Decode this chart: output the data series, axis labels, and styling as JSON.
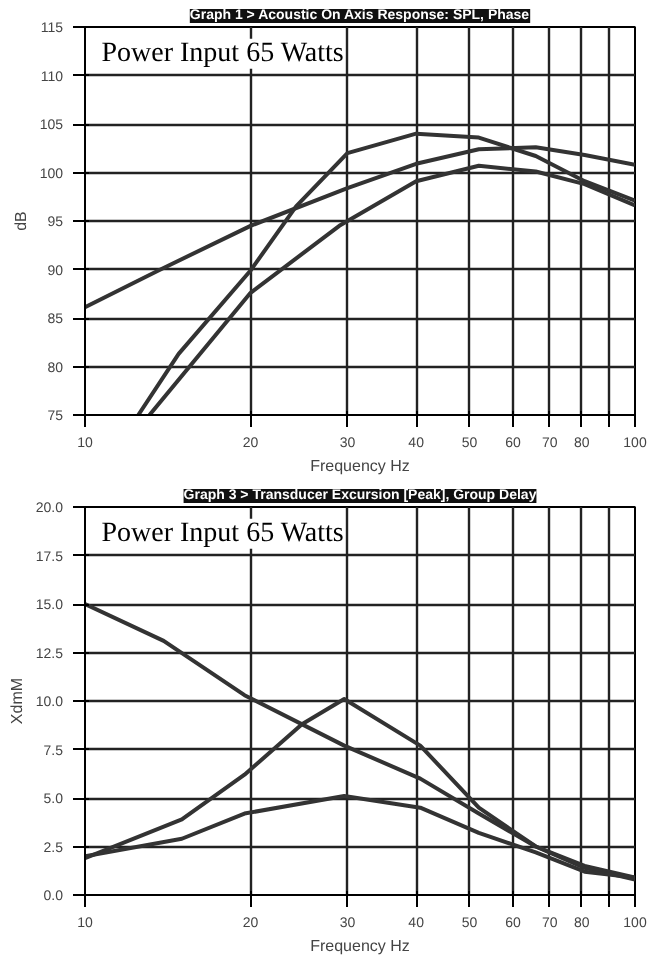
{
  "chart_data": [
    {
      "type": "line",
      "title": "Graph 1 > Acoustic On Axis Response: SPL, Phase",
      "ylabel": "dB",
      "xlabel": "Frequency Hz",
      "annotations": [
        "Power Input 65 Watts"
      ],
      "log": "x",
      "grid": true,
      "line_style": "solid",
      "marker": "none",
      "xlim": [
        10,
        100
      ],
      "xticks": [
        10,
        20,
        30,
        40,
        50,
        60,
        70,
        80,
        {
          "value": 90,
          "label": null
        },
        100
      ],
      "ylim": [
        75,
        115
      ],
      "yticks": [
        75,
        80,
        85,
        90,
        95,
        100,
        105,
        110,
        115
      ],
      "series": [
        {
          "color": "#333333",
          "x": [
            10,
            13.6,
            20,
            30,
            40,
            52,
            66,
            81,
            100
          ],
          "values": [
            86.1,
            89.9,
            94.5,
            98.4,
            100.9,
            102.4,
            102.6,
            101.8,
            100.8
          ]
        },
        {
          "color": "#333333",
          "x": [
            12.5,
            14.8,
            20,
            24.2,
            30,
            40,
            52,
            66,
            81,
            100
          ],
          "values": [
            75,
            81.3,
            89.9,
            96.5,
            102,
            104,
            103.6,
            101.7,
            99.1,
            97.1
          ]
        },
        {
          "color": "#333333",
          "x": [
            13.1,
            20,
            29,
            40,
            52,
            66,
            81,
            100
          ],
          "values": [
            75,
            87.6,
            94.5,
            99.1,
            100.7,
            100.1,
            98.8,
            96.6
          ]
        }
      ]
    },
    {
      "type": "line",
      "title": "Graph 3 > Transducer Excursion [Peak], Group Delay",
      "ylabel": "XdmM",
      "xlabel": "Frequency Hz",
      "annotations": [
        "Power Input 65 Watts"
      ],
      "log": "x",
      "grid": true,
      "line_style": "solid",
      "marker": "none",
      "xlim": [
        10,
        100
      ],
      "xticks": [
        10,
        20,
        30,
        40,
        50,
        60,
        70,
        80,
        {
          "value": 90,
          "label": null
        },
        100
      ],
      "ylim": [
        0,
        20
      ],
      "yticks": [
        {
          "value": 0,
          "label": "0.0"
        },
        2.5,
        {
          "value": 5,
          "label": "5.0"
        },
        7.5,
        {
          "value": 10,
          "label": "10.0"
        },
        12.5,
        {
          "value": 15,
          "label": "15.0"
        },
        17.5,
        {
          "value": 20,
          "label": "20.0"
        }
      ],
      "series": [
        {
          "color": "#333333",
          "x": [
            10,
            13.9,
            19.5,
            29.6,
            40.7,
            52,
            66,
            81,
            100
          ],
          "values": [
            15,
            13.1,
            10.3,
            7.7,
            6.0,
            4.2,
            2.5,
            1.5,
            0.9
          ]
        },
        {
          "color": "#333333",
          "x": [
            10,
            15,
            19.5,
            24.8,
            29.6,
            40.7,
            52,
            66,
            81,
            100
          ],
          "values": [
            1.9,
            3.9,
            6.2,
            8.8,
            10.1,
            7.7,
            4.5,
            2.5,
            1.4,
            0.8
          ]
        },
        {
          "color": "#333333",
          "x": [
            10,
            15,
            19.5,
            29.6,
            40.7,
            52,
            66,
            81,
            100
          ],
          "values": [
            2.0,
            2.9,
            4.2,
            5.1,
            4.5,
            3.2,
            2.2,
            1.2,
            0.9
          ]
        }
      ]
    }
  ]
}
